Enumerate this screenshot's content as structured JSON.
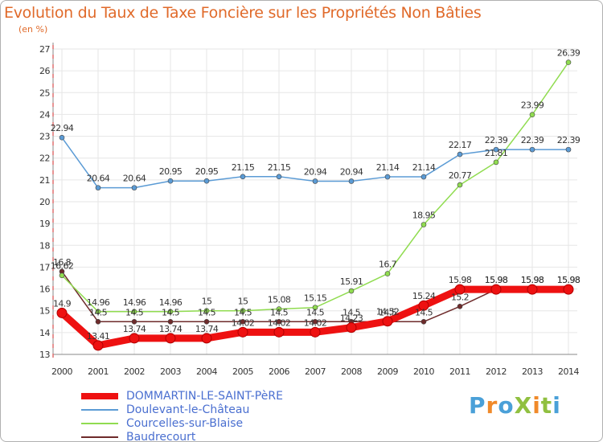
{
  "title": "Evolution du Taux de Taxe Foncière sur les Propriétés Non Bâties",
  "unit": "(en %)",
  "logo": "ProXiti",
  "chart_data": {
    "type": "line",
    "x": [
      "2000",
      "2001",
      "2002",
      "2003",
      "2004",
      "2005",
      "2006",
      "2007",
      "2008",
      "2009",
      "2010",
      "2011",
      "2012",
      "2013",
      "2014"
    ],
    "ylim": [
      13,
      27
    ],
    "yticks": [
      13,
      14,
      15,
      16,
      17,
      18,
      19,
      20,
      21,
      22,
      23,
      24,
      25,
      26,
      27
    ],
    "grid": true,
    "series": [
      {
        "name": "Baudrecourt",
        "color": "#6e2b2b",
        "values": [
          16.8,
          14.5,
          14.5,
          14.5,
          14.5,
          14.5,
          14.5,
          14.5,
          14.5,
          14.5,
          14.5,
          15.2,
          15.98,
          15.98,
          15.98
        ],
        "labels": [
          "16.8",
          "14.5",
          "14.5",
          "14.5",
          "14.5",
          "14.5",
          "14.5",
          "14.5",
          "14.5",
          "14.5",
          "14.5",
          "15.2",
          "15.98",
          "15.98",
          "15.98"
        ]
      },
      {
        "name": "Courcelles-sur-Blaise",
        "color": "#90dc50",
        "values": [
          16.62,
          14.96,
          14.96,
          14.96,
          15,
          15,
          15.08,
          15.15,
          15.91,
          16.7,
          18.95,
          20.77,
          21.81,
          23.99,
          26.39
        ],
        "labels": [
          "16.62",
          "14.96",
          "14.96",
          "14.96",
          "15",
          "15",
          "15.08",
          "15.15",
          "15.91",
          "16.7",
          "18.95",
          "20.77",
          "21.81",
          "23.99",
          "26.39"
        ]
      },
      {
        "name": "Doulevant-le-Château",
        "color": "#5b9bd5",
        "values": [
          22.94,
          20.64,
          20.64,
          20.95,
          20.95,
          21.15,
          21.15,
          20.94,
          20.94,
          21.14,
          21.14,
          22.17,
          22.39,
          22.39,
          22.39
        ],
        "labels": [
          "22.94",
          "20.64",
          "20.64",
          "20.95",
          "20.95",
          "21.15",
          "21.15",
          "20.94",
          "20.94",
          "21.14",
          "21.14",
          "22.17",
          "22.39",
          "22.39",
          "22.39"
        ]
      },
      {
        "name": "DOMMARTIN-LE-SAINT-PèRE",
        "color": "#ee1111",
        "values": [
          14.9,
          13.41,
          13.74,
          13.74,
          13.74,
          14.02,
          14.02,
          14.02,
          14.23,
          14.52,
          15.24,
          15.98,
          15.98,
          15.98,
          15.98
        ],
        "labels": [
          "14.9",
          "13.41",
          "13.74",
          "13.74",
          "13.74",
          "14.02",
          "14.02",
          "14.02",
          "14.23",
          "14.52",
          "15.24",
          "15.98",
          "15.98",
          "15.98",
          "15.98"
        ]
      }
    ]
  },
  "legend": [
    {
      "label": "DOMMARTIN-LE-SAINT-PèRE",
      "color": "#ee1111",
      "width": 8
    },
    {
      "label": "Doulevant-le-Château",
      "color": "#5b9bd5",
      "width": 2
    },
    {
      "label": "Courcelles-sur-Blaise",
      "color": "#90dc50",
      "width": 2
    },
    {
      "label": "Baudrecourt",
      "color": "#6e2b2b",
      "width": 2
    }
  ]
}
